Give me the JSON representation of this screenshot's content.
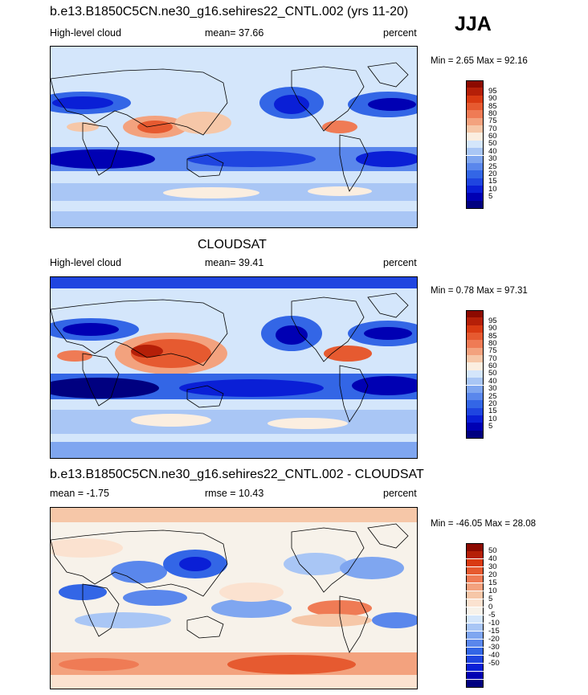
{
  "season": "JJA",
  "palette_abs": [
    "#000080",
    "#0000b3",
    "#0a1fd6",
    "#1f45e0",
    "#3366e6",
    "#5a87ec",
    "#7fa6f0",
    "#a9c6f5",
    "#d4e6fb",
    "#fbeee0",
    "#f6c7a8",
    "#f3a27e",
    "#ef7b55",
    "#e65a30",
    "#d93a12",
    "#b51f08",
    "#8c0a00"
  ],
  "palette_diff": [
    "#000080",
    "#0000b3",
    "#0a1fd6",
    "#1f45e0",
    "#3366e6",
    "#5a87ec",
    "#7fa6f0",
    "#a9c6f5",
    "#d4e6fb",
    "#f7f2ea",
    "#fbe2d0",
    "#f6c7a8",
    "#f3a27e",
    "#ef7b55",
    "#e65a30",
    "#d93a12",
    "#b51f08",
    "#8c0a00"
  ],
  "panels": [
    {
      "title": "b.e13.B1850C5CN.ne30_g16.sehires22_CNTL.002 (yrs 11-20)",
      "left_label": "High-level cloud",
      "center_label": "mean=  37.66",
      "units": "percent",
      "minmax": "Min =   2.65 Max =  92.16",
      "levels": [
        "95",
        "90",
        "85",
        "80",
        "75",
        "70",
        "60",
        "50",
        "40",
        "30",
        "25",
        "20",
        "15",
        "10",
        "5"
      ]
    },
    {
      "title": "CLOUDSAT",
      "left_label": "High-level cloud",
      "center_label": "mean=  39.41",
      "units": "percent",
      "minmax": "Min =   0.78 Max =  97.31",
      "levels": [
        "95",
        "90",
        "85",
        "80",
        "75",
        "70",
        "60",
        "50",
        "40",
        "30",
        "25",
        "20",
        "15",
        "10",
        "5"
      ]
    },
    {
      "title": "b.e13.B1850C5CN.ne30_g16.sehires22_CNTL.002 - CLOUDSAT",
      "left_label": "mean =  -1.75",
      "center_label": "rmse =  10.43",
      "units": "percent",
      "minmax": "Min = -46.05 Max =  28.08",
      "levels": [
        "50",
        "40",
        "30",
        "20",
        "15",
        "10",
        "5",
        "0",
        "-5",
        "-10",
        "-15",
        "-20",
        "-30",
        "-40",
        "-50"
      ]
    }
  ]
}
